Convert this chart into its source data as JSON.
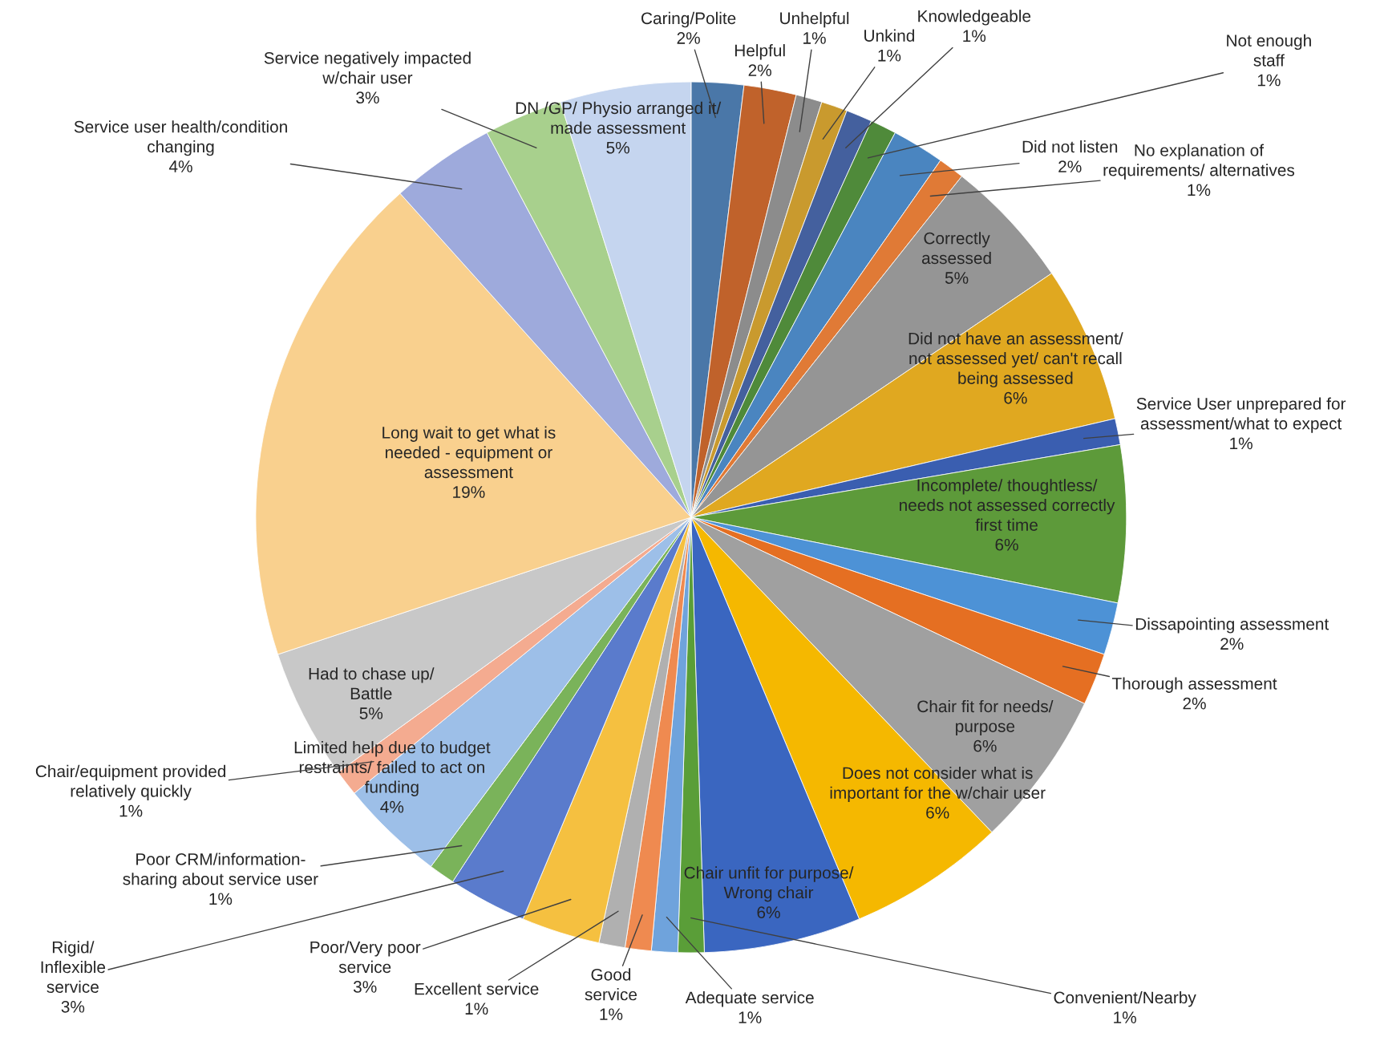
{
  "chart_data": {
    "type": "pie",
    "categories": [
      "Caring/Polite",
      "Helpful",
      "Unhelpful",
      "Unkind",
      "Knowledgeable",
      "Not enough\nstaff",
      "Did not listen",
      "No explanation of\nrequirements/ alternatives",
      "Correctly\nassessed",
      "Did not have an assessment/\nnot assessed yet/ can't recall\nbeing assessed",
      "Service User unprepared for\nassessment/what to expect",
      "Incomplete/ thoughtless/\nneeds not assessed correctly\nfirst time",
      "Dissapointing assessment",
      "Thorough assessment",
      "Chair fit for needs/\npurpose",
      "Does not consider what is\nimportant for the w/chair user",
      "Chair unfit for purpose/\nWrong chair",
      "Convenient/Nearby",
      "Adequate service",
      "Good\nservice",
      "Excellent service",
      "Poor/Very poor\nservice",
      "Rigid/\nInflexible\nservice",
      "Poor CRM/information-\nsharing about service user",
      "Limited help due to budget\nrestraints/ failed to act on\nfunding",
      "Chair/equipment provided\nrelatively quickly",
      "Had to chase up/\nBattle",
      "Long wait to get what is\nneeded - equipment or\nassessment",
      "Service user health/condition\nchanging",
      "Service negatively impacted\nw/chair user",
      "DN /GP/ Physio arranged it/\nmade assessment"
    ],
    "values": [
      2,
      2,
      1,
      1,
      1,
      1,
      2,
      1,
      5,
      6,
      1,
      6,
      2,
      2,
      6,
      6,
      6,
      1,
      1,
      1,
      1,
      3,
      3,
      1,
      4,
      1,
      5,
      19,
      4,
      3,
      5
    ],
    "value_labels": [
      "2%",
      "2%",
      "1%",
      "1%",
      "1%",
      "1%",
      "2%",
      "1%",
      "5%",
      "6%",
      "1%",
      "6%",
      "2%",
      "2%",
      "6%",
      "6%",
      "6%",
      "1%",
      "1%",
      "1%",
      "1%",
      "3%",
      "3%",
      "1%",
      "4%",
      "1%",
      "5%",
      "19%",
      "4%",
      "3%",
      "5%"
    ],
    "colors": [
      "#4a77a8",
      "#c0622b",
      "#8c8c8c",
      "#c99a2e",
      "#44609e",
      "#4f8a3a",
      "#4a85c0",
      "#e07a36",
      "#959595",
      "#e0a820",
      "#3a5eb0",
      "#5d9a3a",
      "#4d92d6",
      "#e56f22",
      "#a0a0a0",
      "#f5b800",
      "#3a66c0",
      "#5a9e38",
      "#6fa3dc",
      "#ef8a50",
      "#b0b0b0",
      "#f5c040",
      "#5a7bcc",
      "#7ab35a",
      "#9dbfe8",
      "#f4ab90",
      "#c8c8c8",
      "#f9d08e",
      "#9eaadc",
      "#a8d08d",
      "#c5d5ef"
    ]
  }
}
